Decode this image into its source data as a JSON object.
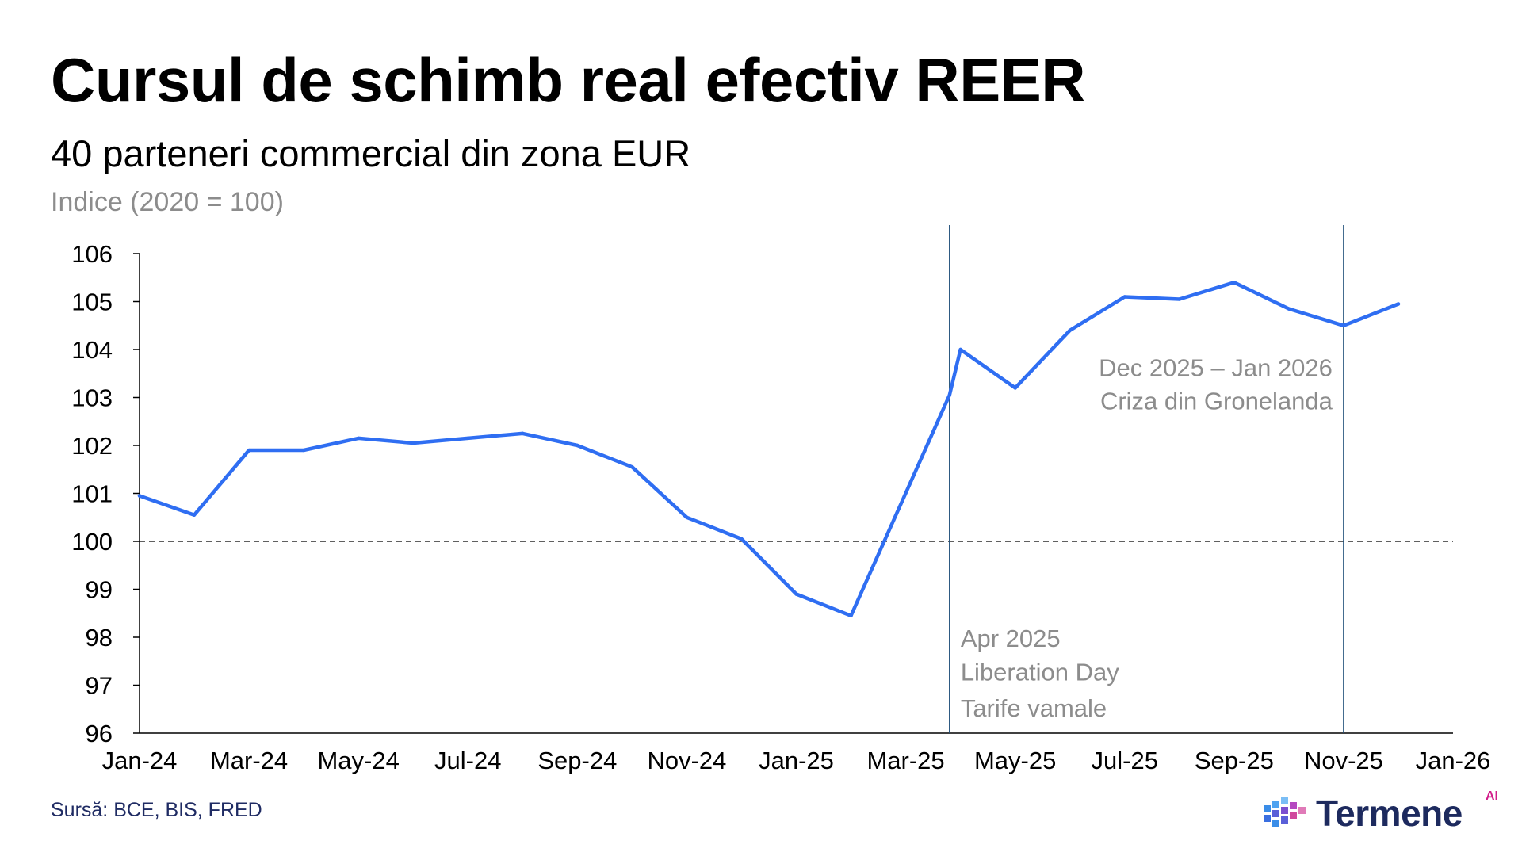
{
  "header": {
    "title": "Cursul de schimb real efectiv REER",
    "subtitle": "40 parteneri commercial din zona EUR",
    "unit": "Indice (2020 = 100)"
  },
  "footer": {
    "source": "Sursă: BCE, BIS, FRED",
    "brand": "Termene",
    "brand_badge": "AI"
  },
  "colors": {
    "line": "#2f6ef2",
    "axis": "#000000",
    "reference": "#1f4e79",
    "annotation": "#8c8c8c"
  },
  "chart_data": {
    "type": "line",
    "title": "Cursul de schimb real efectiv REER",
    "subtitle": "40 parteneri commercial din zona EUR",
    "ylabel": "Indice (2020 = 100)",
    "xlabel": "",
    "ylim": [
      96,
      106
    ],
    "yticks": [
      96,
      97,
      98,
      99,
      100,
      101,
      102,
      103,
      104,
      105,
      106
    ],
    "x_range": [
      0,
      24
    ],
    "xticks": [
      {
        "pos": 0,
        "label": "Jan-24"
      },
      {
        "pos": 2,
        "label": "Mar-24"
      },
      {
        "pos": 4,
        "label": "May-24"
      },
      {
        "pos": 6,
        "label": "Jul-24"
      },
      {
        "pos": 8,
        "label": "Sep-24"
      },
      {
        "pos": 10,
        "label": "Nov-24"
      },
      {
        "pos": 12,
        "label": "Jan-25"
      },
      {
        "pos": 14,
        "label": "Mar-25"
      },
      {
        "pos": 16,
        "label": "May-25"
      },
      {
        "pos": 18,
        "label": "Jul-25"
      },
      {
        "pos": 20,
        "label": "Sep-25"
      },
      {
        "pos": 22,
        "label": "Nov-25"
      },
      {
        "pos": 24,
        "label": "Jan-26"
      }
    ],
    "series": [
      {
        "name": "REER",
        "x": [
          0,
          1,
          2,
          3,
          4,
          5,
          6,
          7,
          8,
          9,
          10,
          11,
          12,
          13,
          14.8,
          15,
          16,
          17,
          18,
          19,
          20,
          21,
          22,
          23
        ],
        "values": [
          100.95,
          100.55,
          101.9,
          101.9,
          102.15,
          102.05,
          102.15,
          102.25,
          102.0,
          101.55,
          100.5,
          100.05,
          98.9,
          98.45,
          103.05,
          104.0,
          103.2,
          104.4,
          105.1,
          105.05,
          105.4,
          104.85,
          104.5,
          104.95
        ]
      }
    ],
    "reference_line": {
      "y": 100,
      "style": "dashed"
    },
    "annotations": [
      {
        "x": 14.8,
        "label_lines": [
          "Apr 2025",
          "Liberation Day",
          "Tarife vamale"
        ],
        "align": "left",
        "text_y": [
          97.8,
          97.1,
          96.35
        ]
      },
      {
        "x": 22.0,
        "label_lines": [
          "Dec 2025 – Jan 2026",
          "Criza din Gronelanda"
        ],
        "align": "right",
        "text_y": [
          103.45,
          102.75
        ]
      }
    ],
    "grid": false
  }
}
